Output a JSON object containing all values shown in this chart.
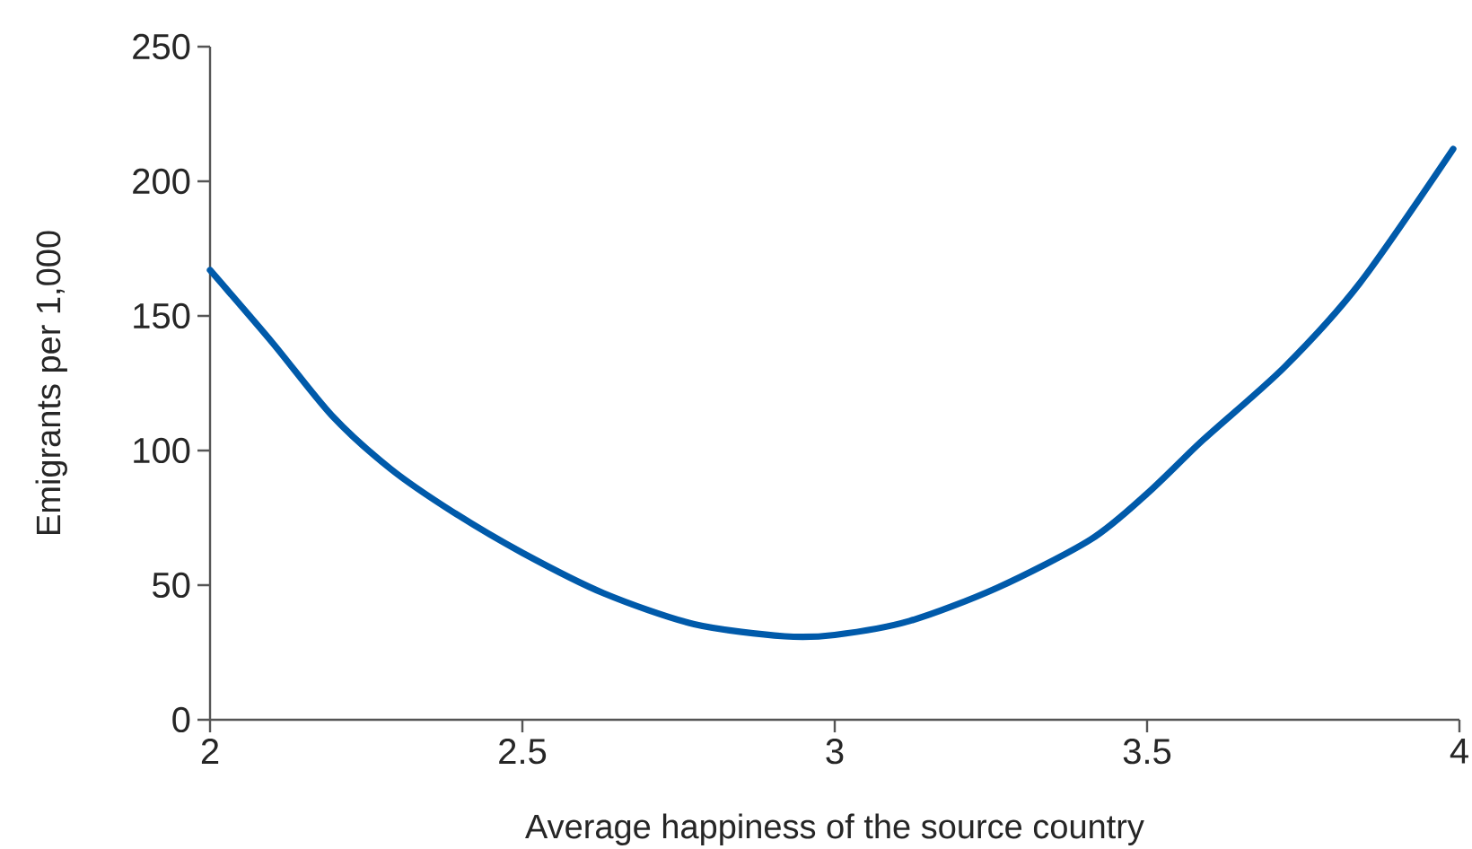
{
  "chart_data": {
    "type": "line",
    "xlabel": "Average happiness of the source country",
    "ylabel": "Emigrants per 1,000",
    "xlim": [
      2,
      4
    ],
    "ylim": [
      0,
      250
    ],
    "xticks": [
      2,
      2.5,
      3,
      3.5,
      4
    ],
    "yticks": [
      0,
      50,
      100,
      150,
      200,
      250
    ],
    "grid": false,
    "marker": "none",
    "line_style": "solid",
    "series": [
      {
        "color": "#005aaa",
        "x": [
          2.0,
          2.1,
          2.195,
          2.29,
          2.39,
          2.5,
          2.63,
          2.775,
          2.92,
          3.0,
          3.12,
          3.26,
          3.41,
          3.5,
          3.59,
          3.72,
          3.84,
          3.99
        ],
        "values": [
          167,
          140,
          113,
          93,
          77,
          62,
          47,
          35.5,
          31,
          31.5,
          36.7,
          49,
          67,
          84,
          104,
          131,
          162,
          212
        ]
      }
    ]
  }
}
